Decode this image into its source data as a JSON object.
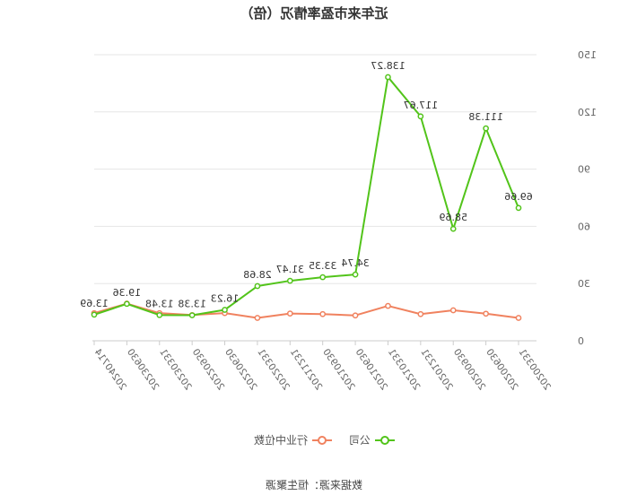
{
  "chart_data": {
    "type": "line",
    "title": "近年来市盈率情况（倍）",
    "categories": [
      "20200331",
      "20200630",
      "20200930",
      "20201231",
      "20210331",
      "20210630",
      "20210930",
      "20211231",
      "20220331",
      "20220630",
      "20220930",
      "20230331",
      "20230630",
      "20240714"
    ],
    "ylim": [
      0,
      150
    ],
    "yticks": [
      "0",
      "30",
      "60",
      "90",
      "120",
      "150"
    ],
    "grid": true,
    "legend_position": "bottom",
    "series": [
      {
        "name": "公司",
        "color": "#52c41a",
        "values": [
          69.66,
          111.38,
          58.69,
          117.67,
          138.27,
          34.74,
          33.35,
          31.47,
          28.68,
          16.23,
          13.38,
          13.48,
          19.36,
          13.69
        ],
        "labels": [
          "69.66",
          "111.38",
          "58.69",
          "117.67",
          "138.27",
          "34.74",
          "33.35",
          "31.47",
          "28.68",
          "16.23",
          "13.38",
          "13.48",
          "19.36",
          "13.69"
        ]
      },
      {
        "name": "行业中位数",
        "color": "#f0825f",
        "values": [
          12.0,
          14.2,
          16.0,
          14.0,
          18.3,
          13.3,
          14.0,
          14.3,
          12.0,
          14.5,
          13.5,
          14.5,
          19.5,
          14.5
        ]
      }
    ],
    "source": "数据来源：恒生聚源"
  }
}
